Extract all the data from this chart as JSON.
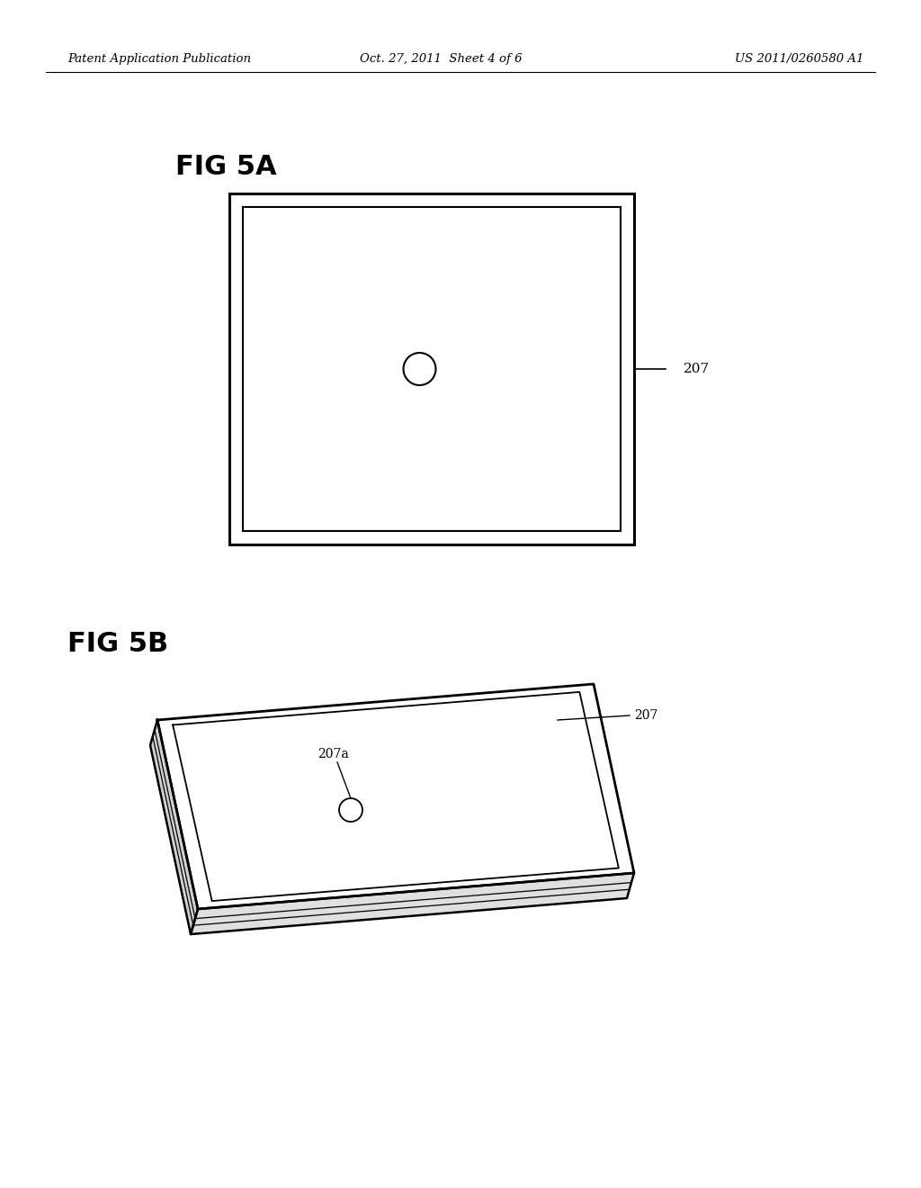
{
  "background_color": "#ffffff",
  "header_left": "Patent Application Publication",
  "header_center": "Oct. 27, 2011  Sheet 4 of 6",
  "header_right": "US 2011/0260580 A1",
  "fig5a_label": "FIG 5A",
  "fig5b_label": "FIG 5B",
  "label_207_5a": "207",
  "label_207_5b": "207",
  "label_207a": "207a",
  "line_color": "#000000",
  "text_color": "#000000"
}
